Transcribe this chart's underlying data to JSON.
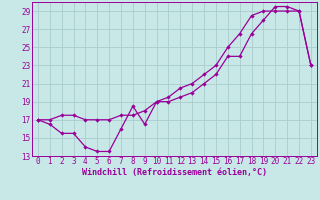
{
  "xlabel": "Windchill (Refroidissement éolien,°C)",
  "bg_color": "#c8e8e8",
  "line_color": "#990099",
  "xlim": [
    -0.5,
    23.5
  ],
  "ylim": [
    13,
    30
  ],
  "xticks": [
    0,
    1,
    2,
    3,
    4,
    5,
    6,
    7,
    8,
    9,
    10,
    11,
    12,
    13,
    14,
    15,
    16,
    17,
    18,
    19,
    20,
    21,
    22,
    23
  ],
  "yticks": [
    13,
    15,
    17,
    19,
    21,
    23,
    25,
    27,
    29
  ],
  "grid_color": "#aacccc",
  "line1_x": [
    0,
    1,
    2,
    3,
    4,
    5,
    6,
    7,
    8,
    9,
    10,
    11,
    12,
    13,
    14,
    15,
    16,
    17,
    18,
    19,
    20,
    21,
    22,
    23
  ],
  "line1_y": [
    17,
    16.5,
    15.5,
    15.5,
    14,
    13.5,
    13.5,
    16,
    18.5,
    16.5,
    19,
    19,
    19.5,
    20,
    21,
    22,
    24,
    24,
    26.5,
    28,
    29.5,
    29.5,
    29,
    23
  ],
  "line2_x": [
    0,
    1,
    2,
    3,
    4,
    5,
    6,
    7,
    8,
    9,
    10,
    11,
    12,
    13,
    14,
    15,
    16,
    17,
    18,
    19,
    20,
    21,
    22,
    23
  ],
  "line2_y": [
    17,
    17,
    17.5,
    17.5,
    17,
    17,
    17,
    17.5,
    17.5,
    18,
    19,
    19.5,
    20.5,
    21,
    22,
    23,
    25,
    26.5,
    28.5,
    29,
    29,
    29,
    29,
    23
  ],
  "marker": "D",
  "markersize": 2.2,
  "linewidth": 0.9,
  "xlabel_fontsize": 6,
  "tick_fontsize": 5.5
}
